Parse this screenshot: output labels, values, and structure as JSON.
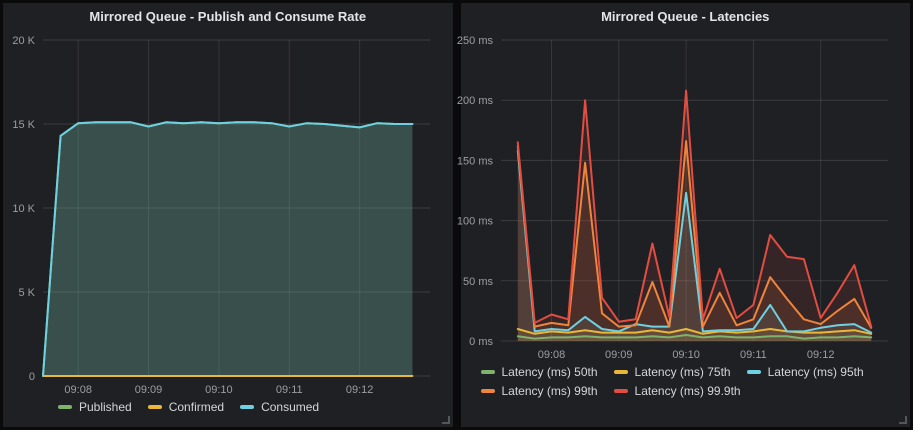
{
  "page": {
    "background": "#0a0a0b",
    "panel_background": "#1f2023"
  },
  "panels": [
    {
      "title": "Mirrored Queue - Publish and Consume Rate",
      "legend": [
        {
          "label": "Published",
          "color": "#7EB26D"
        },
        {
          "label": "Confirmed",
          "color": "#EAB839"
        },
        {
          "label": "Consumed",
          "color": "#6ED0E0"
        }
      ]
    },
    {
      "title": "Mirrored Queue - Latencies",
      "legend": [
        {
          "label": "Latency (ms) 50th",
          "color": "#7EB26D"
        },
        {
          "label": "Latency (ms) 75th",
          "color": "#EAB839"
        },
        {
          "label": "Latency (ms) 95th",
          "color": "#6ED0E0"
        },
        {
          "label": "Latency (ms) 99th",
          "color": "#EF843C"
        },
        {
          "label": "Latency (ms) 99.9th",
          "color": "#E24D42"
        }
      ]
    }
  ],
  "chart_data": [
    {
      "type": "area",
      "title": "Mirrored Queue - Publish and Consume Rate",
      "x_unit": "seconds since 09:07:30",
      "x": [
        0,
        15,
        30,
        45,
        60,
        75,
        90,
        105,
        120,
        135,
        150,
        165,
        180,
        195,
        210,
        225,
        240,
        255,
        270,
        285,
        300,
        315
      ],
      "xlim": [
        0,
        330
      ],
      "ylim": [
        0,
        20000
      ],
      "grid": true,
      "legend_position": "bottom",
      "fill_opacity": 0.16,
      "x_ticks": [
        {
          "t": 30,
          "label": "09:08"
        },
        {
          "t": 90,
          "label": "09:09"
        },
        {
          "t": 150,
          "label": "09:10"
        },
        {
          "t": 210,
          "label": "09:11"
        },
        {
          "t": 270,
          "label": "09:12"
        }
      ],
      "y_ticks": [
        {
          "v": 0,
          "label": "0"
        },
        {
          "v": 5000,
          "label": "5 K"
        },
        {
          "v": 10000,
          "label": "10 K"
        },
        {
          "v": 15000,
          "label": "15 K"
        },
        {
          "v": 20000,
          "label": "20 K"
        }
      ],
      "series": [
        {
          "name": "Published",
          "color": "#7EB26D",
          "values": [
            0,
            14300,
            15050,
            15100,
            15100,
            15100,
            14850,
            15100,
            15050,
            15100,
            15050,
            15100,
            15100,
            15050,
            14850,
            15050,
            15000,
            14900,
            14800,
            15050,
            15000,
            15000
          ]
        },
        {
          "name": "Confirmed",
          "color": "#EAB839",
          "values": [
            0,
            0,
            0,
            0,
            0,
            0,
            0,
            0,
            0,
            0,
            0,
            0,
            0,
            0,
            0,
            0,
            0,
            0,
            0,
            0,
            0,
            0
          ]
        },
        {
          "name": "Consumed",
          "color": "#6ED0E0",
          "values": [
            0,
            14300,
            15050,
            15100,
            15100,
            15100,
            14850,
            15100,
            15050,
            15100,
            15050,
            15100,
            15100,
            15050,
            14850,
            15050,
            15000,
            14900,
            14800,
            15050,
            15000,
            15000
          ]
        }
      ]
    },
    {
      "type": "area",
      "title": "Mirrored Queue - Latencies",
      "x_unit": "seconds since 09:07:30",
      "x": [
        0,
        15,
        30,
        45,
        60,
        75,
        90,
        105,
        120,
        135,
        150,
        165,
        180,
        195,
        210,
        225,
        240,
        255,
        270,
        285,
        300,
        315
      ],
      "xlim": [
        -15,
        330
      ],
      "ylim": [
        0,
        250
      ],
      "grid": true,
      "legend_position": "bottom",
      "fill_opacity": 0.12,
      "x_ticks": [
        {
          "t": 30,
          "label": "09:08"
        },
        {
          "t": 90,
          "label": "09:09"
        },
        {
          "t": 150,
          "label": "09:10"
        },
        {
          "t": 210,
          "label": "09:11"
        },
        {
          "t": 270,
          "label": "09:12"
        }
      ],
      "y_ticks": [
        {
          "v": 0,
          "label": "0 ms"
        },
        {
          "v": 50,
          "label": "50 ms"
        },
        {
          "v": 100,
          "label": "100 ms"
        },
        {
          "v": 150,
          "label": "150 ms"
        },
        {
          "v": 200,
          "label": "200 ms"
        },
        {
          "v": 250,
          "label": "250 ms"
        }
      ],
      "series": [
        {
          "name": "Latency (ms) 50th",
          "color": "#7EB26D",
          "values": [
            4,
            2,
            3,
            3,
            4,
            3,
            3,
            3,
            4,
            3,
            5,
            3,
            4,
            3,
            3,
            4,
            4,
            2,
            3,
            3,
            4,
            3
          ]
        },
        {
          "name": "Latency (ms) 75th",
          "color": "#EAB839",
          "values": [
            10,
            6,
            8,
            7,
            9,
            7,
            7,
            7,
            9,
            7,
            10,
            6,
            8,
            7,
            8,
            10,
            8,
            7,
            7,
            8,
            9,
            6
          ]
        },
        {
          "name": "Latency (ms) 95th",
          "color": "#6ED0E0",
          "values": [
            158,
            8,
            10,
            9,
            20,
            10,
            8,
            14,
            12,
            12,
            123,
            8,
            9,
            9,
            10,
            30,
            8,
            8,
            11,
            13,
            14,
            7
          ]
        },
        {
          "name": "Latency (ms) 99th",
          "color": "#EF843C",
          "values": [
            162,
            12,
            15,
            13,
            148,
            23,
            12,
            13,
            49,
            12,
            166,
            12,
            40,
            13,
            18,
            53,
            35,
            18,
            14,
            25,
            35,
            11
          ]
        },
        {
          "name": "Latency (ms) 99.9th",
          "color": "#E24D42",
          "values": [
            165,
            15,
            22,
            18,
            200,
            36,
            16,
            18,
            81,
            20,
            208,
            18,
            60,
            19,
            30,
            88,
            70,
            68,
            19,
            40,
            63,
            12
          ]
        }
      ]
    }
  ]
}
